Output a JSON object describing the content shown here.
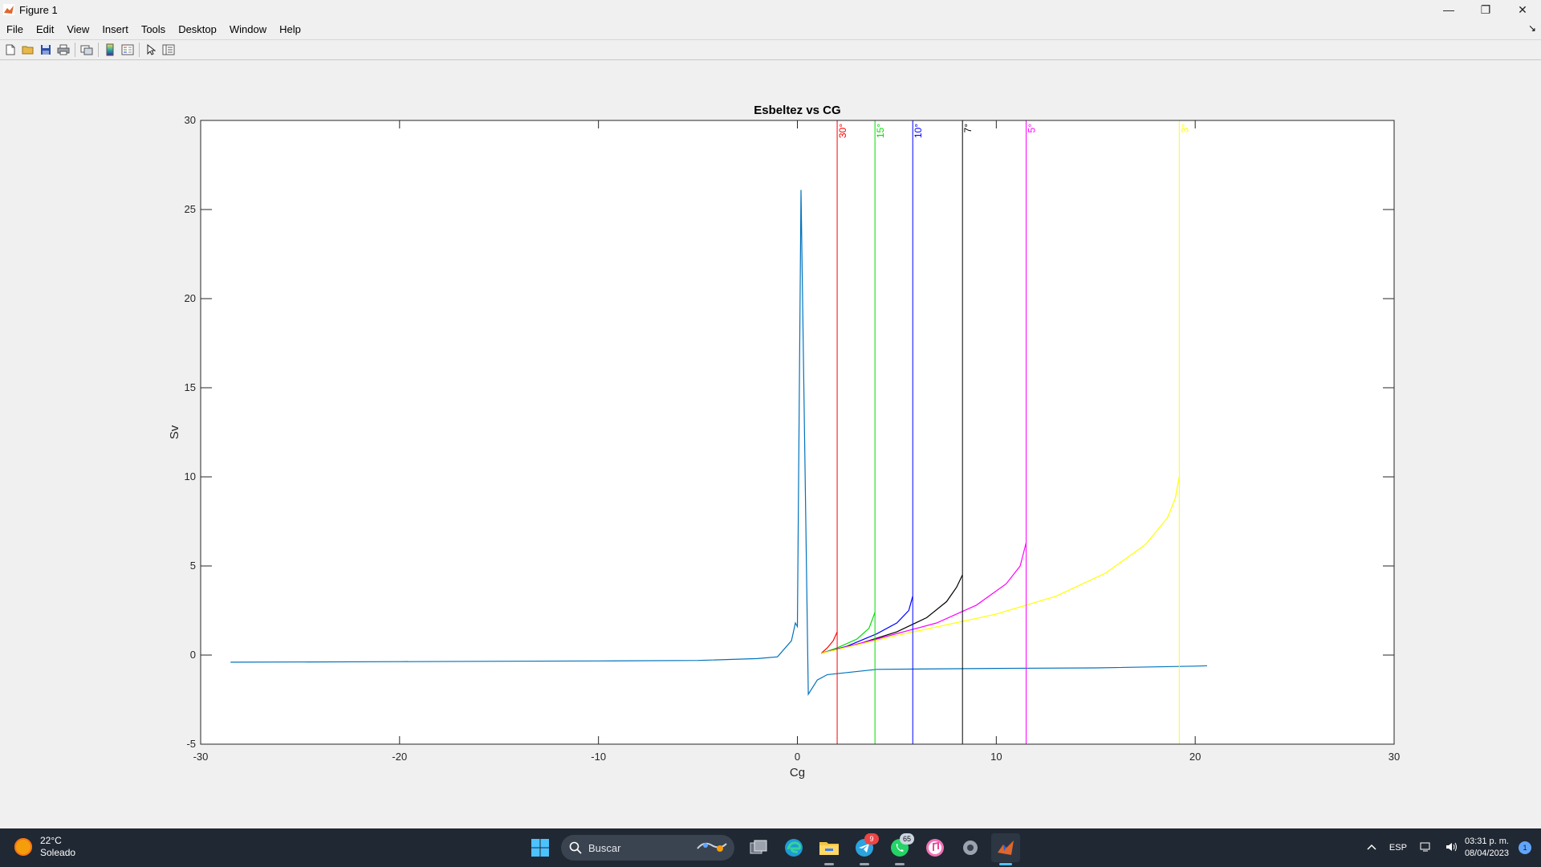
{
  "window": {
    "title": "Figure 1",
    "minimize": "—",
    "maximize": "❐",
    "close": "✕"
  },
  "menu": {
    "items": [
      "File",
      "Edit",
      "View",
      "Insert",
      "Tools",
      "Desktop",
      "Window",
      "Help"
    ],
    "dock_arrow": "↘"
  },
  "toolbar": {
    "icons": [
      "new-figure-icon",
      "open-icon",
      "save-icon",
      "print-icon",
      "link-icon",
      "insert-colorbar-icon",
      "insert-legend-icon",
      "pointer-icon",
      "property-inspector-icon"
    ]
  },
  "chart_data": {
    "type": "line",
    "title": "Esbeltez vs CG",
    "xlabel": "Cg",
    "ylabel": "Sv",
    "xlim": [
      -30,
      30
    ],
    "ylim": [
      -5,
      30
    ],
    "xticks": [
      -30,
      -20,
      -10,
      0,
      10,
      20,
      30
    ],
    "yticks": [
      -5,
      0,
      5,
      10,
      15,
      20,
      25,
      30
    ],
    "grid": false,
    "series": [
      {
        "color": "#0072bd",
        "x": [
          -28.5,
          -20,
          -10,
          -5,
          -2,
          -1,
          -0.3,
          -0.1,
          0,
          0.18,
          0.55,
          1.0,
          1.5,
          4.0,
          10,
          15,
          20,
          20.6
        ],
        "y": [
          -0.4,
          -0.37,
          -0.33,
          -0.3,
          -0.2,
          -0.1,
          0.8,
          1.8,
          1.6,
          26.1,
          -2.2,
          -1.4,
          -1.1,
          -0.8,
          -0.75,
          -0.72,
          -0.62,
          -0.6
        ]
      },
      {
        "color": "#ff0000",
        "x": [
          1.2,
          1.5,
          1.8,
          2.0
        ],
        "y": [
          0.1,
          0.4,
          0.8,
          1.3
        ]
      },
      {
        "color": "#00dd00",
        "x": [
          1.2,
          2.0,
          3.0,
          3.6,
          3.9
        ],
        "y": [
          0.1,
          0.4,
          0.9,
          1.5,
          2.4
        ]
      },
      {
        "color": "#0000ff",
        "x": [
          1.2,
          2.5,
          4.0,
          5.0,
          5.6,
          5.8
        ],
        "y": [
          0.1,
          0.5,
          1.2,
          1.8,
          2.5,
          3.3
        ]
      },
      {
        "color": "#000000",
        "x": [
          1.2,
          3.0,
          5.0,
          6.5,
          7.5,
          8.0,
          8.3
        ],
        "y": [
          0.1,
          0.6,
          1.3,
          2.1,
          3.0,
          3.8,
          4.5
        ]
      },
      {
        "color": "#ff00ff",
        "x": [
          1.2,
          4.0,
          7.0,
          9.0,
          10.5,
          11.2,
          11.5
        ],
        "y": [
          0.1,
          0.9,
          1.8,
          2.8,
          4.0,
          5.0,
          6.3
        ]
      },
      {
        "color": "#ffff00",
        "x": [
          1.2,
          5.0,
          10.0,
          13.0,
          15.5,
          17.5,
          18.6,
          19.0,
          19.2
        ],
        "y": [
          0.1,
          1.1,
          2.3,
          3.3,
          4.6,
          6.2,
          7.7,
          8.8,
          10.0
        ]
      }
    ],
    "vlines": [
      {
        "x": 2.0,
        "label": "30°",
        "color": "#ff0000"
      },
      {
        "x": 3.9,
        "label": "15°",
        "color": "#00dd00"
      },
      {
        "x": 5.8,
        "label": "10°",
        "color": "#0000ff"
      },
      {
        "x": 8.3,
        "label": "7°",
        "color": "#000000"
      },
      {
        "x": 11.5,
        "label": "5°",
        "color": "#ff00ff"
      },
      {
        "x": 19.2,
        "label": "3°",
        "color": "#ffff00"
      }
    ]
  },
  "taskbar": {
    "weather_temp": "22°C",
    "weather_desc": "Soleado",
    "search_placeholder": "Buscar",
    "telegram_badge": "9",
    "whatsapp_badge": "65",
    "lang": "ESP",
    "time": "03:31 p. m.",
    "date": "08/04/2023",
    "notif_count": "1"
  }
}
